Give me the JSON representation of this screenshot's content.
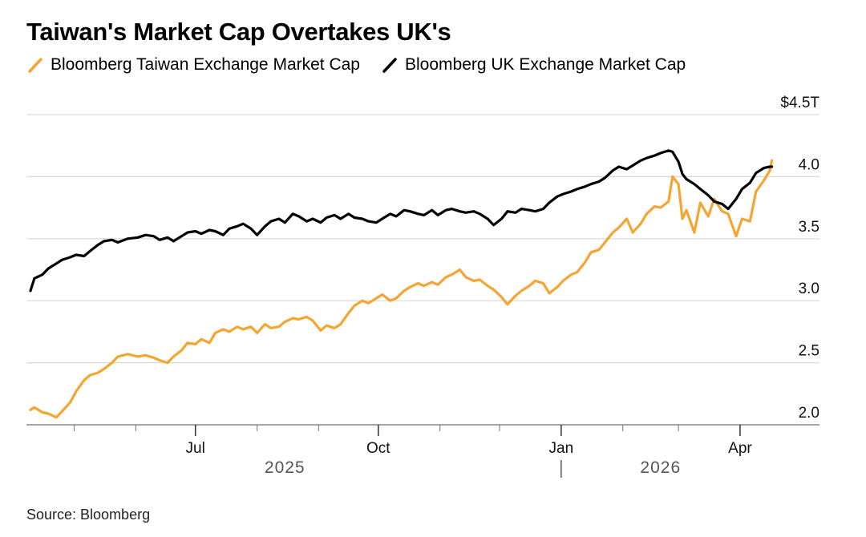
{
  "title": "Taiwan's Market Cap Overtakes UK's",
  "source": "Source: Bloomberg",
  "colors": {
    "taiwan": "#f4a532",
    "uk": "#000000",
    "grid": "#d9d9d9",
    "axis": "#888888"
  },
  "chart_data": {
    "type": "line",
    "title": "Taiwan's Market Cap Overtakes UK's",
    "ylabel": "",
    "ylim": [
      2.0,
      4.5
    ],
    "y_unit_label": "$4.5T",
    "y_ticks": [
      "2.0",
      "2.5",
      "3.0",
      "3.5",
      "4.0"
    ],
    "x_range": [
      "2025-04-07",
      "2026-04-22"
    ],
    "x_labels": [
      {
        "date": "2025-07-01",
        "label": "Jul"
      },
      {
        "date": "2025-10-01",
        "label": "Oct"
      },
      {
        "date": "2026-01-01",
        "label": "Jan"
      },
      {
        "date": "2026-04-01",
        "label": "Apr"
      }
    ],
    "x_minor_months": [
      "2025-05-01",
      "2025-06-01",
      "2025-08-01",
      "2025-09-01",
      "2025-11-01",
      "2025-12-01",
      "2026-02-01",
      "2026-03-01"
    ],
    "years": [
      {
        "label": "2025",
        "date": "2025-08-15"
      },
      {
        "label": "2026",
        "date": "2026-02-20"
      }
    ],
    "year_divider": "2026-01-01",
    "series": [
      {
        "name": "Bloomberg Taiwan Exchange Market Cap",
        "color": "#f4a532",
        "points": [
          [
            "2025-04-09",
            2.12
          ],
          [
            "2025-04-11",
            2.14
          ],
          [
            "2025-04-15",
            2.1
          ],
          [
            "2025-04-18",
            2.09
          ],
          [
            "2025-04-22",
            2.06
          ],
          [
            "2025-04-25",
            2.11
          ],
          [
            "2025-04-29",
            2.18
          ],
          [
            "2025-05-02",
            2.27
          ],
          [
            "2025-05-06",
            2.36
          ],
          [
            "2025-05-09",
            2.4
          ],
          [
            "2025-05-13",
            2.42
          ],
          [
            "2025-05-16",
            2.45
          ],
          [
            "2025-05-20",
            2.5
          ],
          [
            "2025-05-23",
            2.55
          ],
          [
            "2025-05-28",
            2.57
          ],
          [
            "2025-06-02",
            2.55
          ],
          [
            "2025-06-06",
            2.56
          ],
          [
            "2025-06-10",
            2.54
          ],
          [
            "2025-06-13",
            2.52
          ],
          [
            "2025-06-17",
            2.5
          ],
          [
            "2025-06-20",
            2.55
          ],
          [
            "2025-06-24",
            2.6
          ],
          [
            "2025-06-27",
            2.66
          ],
          [
            "2025-07-01",
            2.65
          ],
          [
            "2025-07-04",
            2.69
          ],
          [
            "2025-07-08",
            2.66
          ],
          [
            "2025-07-11",
            2.74
          ],
          [
            "2025-07-15",
            2.77
          ],
          [
            "2025-07-18",
            2.75
          ],
          [
            "2025-07-22",
            2.79
          ],
          [
            "2025-07-25",
            2.77
          ],
          [
            "2025-07-29",
            2.79
          ],
          [
            "2025-08-01",
            2.74
          ],
          [
            "2025-08-05",
            2.81
          ],
          [
            "2025-08-08",
            2.78
          ],
          [
            "2025-08-12",
            2.79
          ],
          [
            "2025-08-15",
            2.83
          ],
          [
            "2025-08-19",
            2.86
          ],
          [
            "2025-08-22",
            2.85
          ],
          [
            "2025-08-26",
            2.87
          ],
          [
            "2025-08-29",
            2.84
          ],
          [
            "2025-09-02",
            2.76
          ],
          [
            "2025-09-05",
            2.8
          ],
          [
            "2025-09-09",
            2.78
          ],
          [
            "2025-09-12",
            2.81
          ],
          [
            "2025-09-16",
            2.9
          ],
          [
            "2025-09-19",
            2.96
          ],
          [
            "2025-09-23",
            3.0
          ],
          [
            "2025-09-26",
            2.98
          ],
          [
            "2025-09-30",
            3.02
          ],
          [
            "2025-10-03",
            3.05
          ],
          [
            "2025-10-07",
            3.0
          ],
          [
            "2025-10-10",
            3.02
          ],
          [
            "2025-10-14",
            3.08
          ],
          [
            "2025-10-17",
            3.11
          ],
          [
            "2025-10-21",
            3.14
          ],
          [
            "2025-10-24",
            3.12
          ],
          [
            "2025-10-28",
            3.15
          ],
          [
            "2025-10-31",
            3.13
          ],
          [
            "2025-11-04",
            3.19
          ],
          [
            "2025-11-07",
            3.21
          ],
          [
            "2025-11-11",
            3.25
          ],
          [
            "2025-11-14",
            3.19
          ],
          [
            "2025-11-18",
            3.16
          ],
          [
            "2025-11-21",
            3.17
          ],
          [
            "2025-11-25",
            3.12
          ],
          [
            "2025-11-28",
            3.09
          ],
          [
            "2025-12-02",
            3.03
          ],
          [
            "2025-12-05",
            2.97
          ],
          [
            "2025-12-09",
            3.04
          ],
          [
            "2025-12-12",
            3.08
          ],
          [
            "2025-12-16",
            3.12
          ],
          [
            "2025-12-19",
            3.16
          ],
          [
            "2025-12-23",
            3.14
          ],
          [
            "2025-12-26",
            3.06
          ],
          [
            "2025-12-30",
            3.11
          ],
          [
            "2026-01-02",
            3.16
          ],
          [
            "2026-01-06",
            3.21
          ],
          [
            "2026-01-09",
            3.23
          ],
          [
            "2026-01-13",
            3.31
          ],
          [
            "2026-01-16",
            3.39
          ],
          [
            "2026-01-20",
            3.41
          ],
          [
            "2026-01-23",
            3.47
          ],
          [
            "2026-01-27",
            3.55
          ],
          [
            "2026-01-30",
            3.59
          ],
          [
            "2026-02-03",
            3.66
          ],
          [
            "2026-02-06",
            3.55
          ],
          [
            "2026-02-10",
            3.62
          ],
          [
            "2026-02-13",
            3.7
          ],
          [
            "2026-02-17",
            3.76
          ],
          [
            "2026-02-20",
            3.75
          ],
          [
            "2026-02-24",
            3.8
          ],
          [
            "2026-02-26",
            4.0
          ],
          [
            "2026-03-01",
            3.94
          ],
          [
            "2026-03-03",
            3.66
          ],
          [
            "2026-03-05",
            3.73
          ],
          [
            "2026-03-09",
            3.55
          ],
          [
            "2026-03-12",
            3.79
          ],
          [
            "2026-03-16",
            3.68
          ],
          [
            "2026-03-19",
            3.82
          ],
          [
            "2026-03-23",
            3.72
          ],
          [
            "2026-03-26",
            3.7
          ],
          [
            "2026-03-30",
            3.52
          ],
          [
            "2026-04-02",
            3.66
          ],
          [
            "2026-04-06",
            3.64
          ],
          [
            "2026-04-09",
            3.88
          ],
          [
            "2026-04-13",
            3.97
          ],
          [
            "2026-04-16",
            4.05
          ],
          [
            "2026-04-17",
            4.13
          ]
        ]
      },
      {
        "name": "Bloomberg UK Exchange Market Cap",
        "color": "#000000",
        "points": [
          [
            "2025-04-09",
            3.08
          ],
          [
            "2025-04-11",
            3.18
          ],
          [
            "2025-04-15",
            3.21
          ],
          [
            "2025-04-18",
            3.26
          ],
          [
            "2025-04-22",
            3.3
          ],
          [
            "2025-04-25",
            3.33
          ],
          [
            "2025-04-29",
            3.35
          ],
          [
            "2025-05-02",
            3.37
          ],
          [
            "2025-05-06",
            3.36
          ],
          [
            "2025-05-09",
            3.4
          ],
          [
            "2025-05-13",
            3.45
          ],
          [
            "2025-05-16",
            3.48
          ],
          [
            "2025-05-20",
            3.49
          ],
          [
            "2025-05-23",
            3.47
          ],
          [
            "2025-05-28",
            3.5
          ],
          [
            "2025-06-02",
            3.51
          ],
          [
            "2025-06-06",
            3.53
          ],
          [
            "2025-06-10",
            3.52
          ],
          [
            "2025-06-13",
            3.49
          ],
          [
            "2025-06-17",
            3.51
          ],
          [
            "2025-06-20",
            3.48
          ],
          [
            "2025-06-24",
            3.52
          ],
          [
            "2025-06-27",
            3.55
          ],
          [
            "2025-07-01",
            3.56
          ],
          [
            "2025-07-04",
            3.54
          ],
          [
            "2025-07-08",
            3.57
          ],
          [
            "2025-07-11",
            3.56
          ],
          [
            "2025-07-15",
            3.53
          ],
          [
            "2025-07-18",
            3.58
          ],
          [
            "2025-07-22",
            3.6
          ],
          [
            "2025-07-25",
            3.62
          ],
          [
            "2025-07-29",
            3.58
          ],
          [
            "2025-08-01",
            3.53
          ],
          [
            "2025-08-05",
            3.6
          ],
          [
            "2025-08-08",
            3.64
          ],
          [
            "2025-08-12",
            3.66
          ],
          [
            "2025-08-15",
            3.63
          ],
          [
            "2025-08-19",
            3.7
          ],
          [
            "2025-08-22",
            3.68
          ],
          [
            "2025-08-26",
            3.64
          ],
          [
            "2025-08-29",
            3.66
          ],
          [
            "2025-09-02",
            3.63
          ],
          [
            "2025-09-05",
            3.67
          ],
          [
            "2025-09-09",
            3.69
          ],
          [
            "2025-09-12",
            3.66
          ],
          [
            "2025-09-16",
            3.7
          ],
          [
            "2025-09-19",
            3.67
          ],
          [
            "2025-09-23",
            3.66
          ],
          [
            "2025-09-26",
            3.64
          ],
          [
            "2025-09-30",
            3.63
          ],
          [
            "2025-10-03",
            3.66
          ],
          [
            "2025-10-07",
            3.7
          ],
          [
            "2025-10-10",
            3.68
          ],
          [
            "2025-10-14",
            3.73
          ],
          [
            "2025-10-17",
            3.72
          ],
          [
            "2025-10-21",
            3.7
          ],
          [
            "2025-10-24",
            3.69
          ],
          [
            "2025-10-28",
            3.73
          ],
          [
            "2025-10-31",
            3.69
          ],
          [
            "2025-11-04",
            3.73
          ],
          [
            "2025-11-07",
            3.74
          ],
          [
            "2025-11-11",
            3.72
          ],
          [
            "2025-11-14",
            3.71
          ],
          [
            "2025-11-18",
            3.72
          ],
          [
            "2025-11-21",
            3.7
          ],
          [
            "2025-11-25",
            3.66
          ],
          [
            "2025-11-28",
            3.61
          ],
          [
            "2025-12-02",
            3.66
          ],
          [
            "2025-12-05",
            3.72
          ],
          [
            "2025-12-09",
            3.71
          ],
          [
            "2025-12-12",
            3.74
          ],
          [
            "2025-12-16",
            3.73
          ],
          [
            "2025-12-19",
            3.72
          ],
          [
            "2025-12-23",
            3.74
          ],
          [
            "2025-12-26",
            3.79
          ],
          [
            "2025-12-30",
            3.84
          ],
          [
            "2026-01-02",
            3.86
          ],
          [
            "2026-01-06",
            3.88
          ],
          [
            "2026-01-09",
            3.9
          ],
          [
            "2026-01-13",
            3.92
          ],
          [
            "2026-01-16",
            3.94
          ],
          [
            "2026-01-20",
            3.96
          ],
          [
            "2026-01-23",
            3.99
          ],
          [
            "2026-01-27",
            4.05
          ],
          [
            "2026-01-30",
            4.08
          ],
          [
            "2026-02-03",
            4.06
          ],
          [
            "2026-02-06",
            4.09
          ],
          [
            "2026-02-10",
            4.13
          ],
          [
            "2026-02-13",
            4.15
          ],
          [
            "2026-02-17",
            4.17
          ],
          [
            "2026-02-20",
            4.19
          ],
          [
            "2026-02-24",
            4.21
          ],
          [
            "2026-02-26",
            4.2
          ],
          [
            "2026-03-01",
            4.12
          ],
          [
            "2026-03-03",
            4.02
          ],
          [
            "2026-03-05",
            3.98
          ],
          [
            "2026-03-09",
            3.94
          ],
          [
            "2026-03-12",
            3.9
          ],
          [
            "2026-03-16",
            3.85
          ],
          [
            "2026-03-19",
            3.8
          ],
          [
            "2026-03-23",
            3.78
          ],
          [
            "2026-03-26",
            3.74
          ],
          [
            "2026-03-30",
            3.82
          ],
          [
            "2026-04-02",
            3.9
          ],
          [
            "2026-04-06",
            3.95
          ],
          [
            "2026-04-09",
            4.03
          ],
          [
            "2026-04-13",
            4.07
          ],
          [
            "2026-04-16",
            4.08
          ],
          [
            "2026-04-17",
            4.08
          ]
        ]
      }
    ]
  }
}
